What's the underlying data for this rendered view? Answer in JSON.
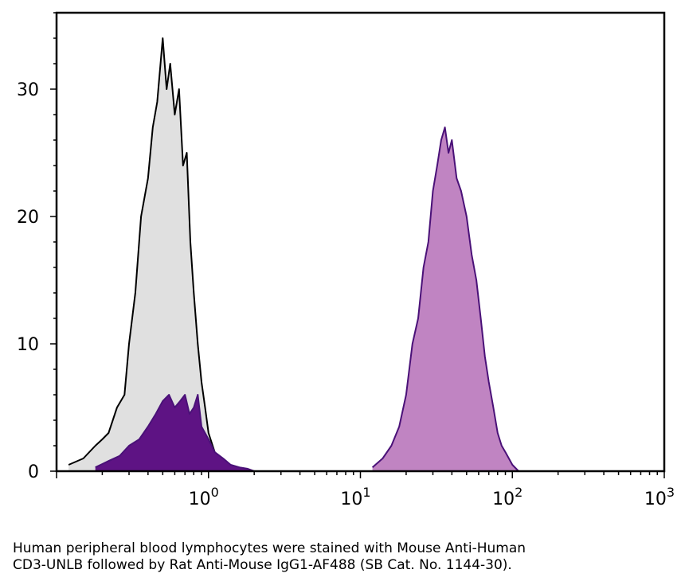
{
  "chart_data": {
    "type": "area",
    "title": "",
    "xlabel": "",
    "ylabel": "",
    "xscale": "log",
    "xlim": [
      0.1,
      1000
    ],
    "ylim": [
      0,
      36
    ],
    "grid": false,
    "legend": "none",
    "y_ticks": [
      {
        "value": 0,
        "label": "0"
      },
      {
        "value": 10,
        "label": "10"
      },
      {
        "value": 20,
        "label": "20"
      },
      {
        "value": 30,
        "label": "30"
      }
    ],
    "x_ticks": [
      {
        "value": 1,
        "base": "10",
        "exp": "0"
      },
      {
        "value": 10,
        "base": "10",
        "exp": "1"
      },
      {
        "value": 100,
        "base": "10",
        "exp": "2"
      },
      {
        "value": 1000,
        "base": "10",
        "exp": "3"
      }
    ],
    "series": [
      {
        "fill": "#e0e0e0",
        "stroke": "#000000",
        "x": [
          0.12,
          0.15,
          0.18,
          0.2,
          0.22,
          0.25,
          0.28,
          0.3,
          0.33,
          0.36,
          0.4,
          0.43,
          0.46,
          0.5,
          0.53,
          0.56,
          0.6,
          0.64,
          0.68,
          0.72,
          0.76,
          0.8,
          0.85,
          0.9,
          0.95,
          1.0,
          1.1,
          1.2,
          1.35,
          1.5
        ],
        "y": [
          0.5,
          1,
          2,
          2.5,
          3,
          5,
          6,
          10,
          14,
          20,
          23,
          27,
          29,
          34,
          30,
          32,
          28,
          30,
          24,
          25,
          18,
          14,
          10,
          7,
          5,
          3,
          1.5,
          0.8,
          0.3,
          0
        ]
      },
      {
        "fill": "#5e1384",
        "stroke": "#4a1178",
        "x": [
          0.18,
          0.22,
          0.26,
          0.3,
          0.35,
          0.4,
          0.45,
          0.5,
          0.55,
          0.6,
          0.65,
          0.7,
          0.75,
          0.8,
          0.85,
          0.9,
          1.0,
          1.1,
          1.25,
          1.4,
          1.6,
          1.8,
          2.0
        ],
        "y": [
          0.3,
          0.8,
          1.2,
          2,
          2.5,
          3.5,
          4.5,
          5.5,
          6,
          5,
          5.5,
          6,
          4.5,
          5,
          6,
          3.5,
          2.5,
          1.5,
          1,
          0.5,
          0.3,
          0.2,
          0
        ]
      },
      {
        "fill": "#c084c2",
        "stroke": "#4a1178",
        "x": [
          12,
          14,
          16,
          18,
          20,
          22,
          24,
          26,
          28,
          30,
          32,
          34,
          36,
          38,
          40,
          43,
          46,
          50,
          54,
          58,
          62,
          66,
          70,
          75,
          80,
          85,
          90,
          100,
          110
        ],
        "y": [
          0.3,
          1,
          2,
          3.5,
          6,
          10,
          12,
          16,
          18,
          22,
          24,
          26,
          27,
          25,
          26,
          23,
          22,
          20,
          17,
          15,
          12,
          9,
          7,
          5,
          3,
          2,
          1.5,
          0.5,
          0
        ]
      }
    ]
  },
  "caption": {
    "line1": "Human peripheral blood lymphocytes were stained with Mouse Anti-Human",
    "line2": "CD3-UNLB followed by Rat Anti-Mouse IgG1-AF488 (SB Cat. No. 1144-30)."
  }
}
